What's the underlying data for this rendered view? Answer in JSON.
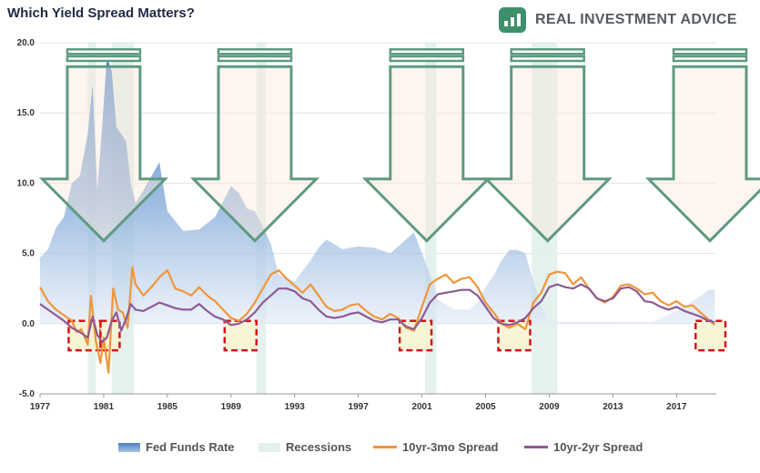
{
  "title": "Which Yield Spread Matters?",
  "brand": {
    "name": "REAL INVESTMENT ADVICE",
    "logo_icon": "rising-bars-logo-icon"
  },
  "chart_data": {
    "type": "area",
    "y_ticks": [
      "20.0",
      "15.0",
      "10.0",
      "5.0",
      "0.0",
      "-5.0"
    ],
    "x_ticks": [
      "1977",
      "1981",
      "1985",
      "1989",
      "1993",
      "1997",
      "2001",
      "2005",
      "2009",
      "2013",
      "2017"
    ],
    "xlim": [
      1977,
      2019.5
    ],
    "ylim": [
      -5,
      20
    ],
    "grid": true,
    "legend_placement": "bottom",
    "colors": {
      "fed_funds": "#7ea6d8",
      "recessions": "#e3f0ec",
      "spread_3mo": "#f0953a",
      "spread_2yr": "#8c5a94",
      "arrow_stroke": "#5f9a80",
      "arrow_fill": "#fbe9dc",
      "box_stroke": "#d4141a",
      "box_fill": "#f7f3cf"
    },
    "series": [
      {
        "name": "Fed Funds Rate",
        "x": [
          1977.0,
          1977.5,
          1978.0,
          1978.5,
          1979.0,
          1979.5,
          1980.0,
          1980.3,
          1980.6,
          1980.9,
          1981.2,
          1981.5,
          1981.8,
          1982.1,
          1982.4,
          1982.7,
          1983.0,
          1983.5,
          1984.0,
          1984.5,
          1985.0,
          1986.0,
          1987.0,
          1988.0,
          1989.0,
          1989.5,
          1990.0,
          1990.5,
          1991.0,
          1991.5,
          1992.0,
          1993.0,
          1994.0,
          1994.5,
          1995.0,
          1996.0,
          1997.0,
          1998.0,
          1999.0,
          2000.0,
          2000.5,
          2001.0,
          2001.5,
          2002.0,
          2003.0,
          2003.5,
          2004.0,
          2004.5,
          2005.0,
          2005.5,
          2006.0,
          2006.5,
          2007.0,
          2007.5,
          2008.0,
          2008.3,
          2008.6,
          2009.0,
          2012.0,
          2015.5,
          2016.0,
          2017.0,
          2017.5,
          2018.0,
          2018.5,
          2019.0,
          2019.4
        ],
        "values": [
          4.7,
          5.3,
          6.8,
          7.6,
          10.0,
          10.5,
          13.5,
          17.0,
          9.5,
          14.0,
          19.0,
          18.0,
          14.0,
          13.5,
          13.0,
          10.0,
          8.6,
          9.5,
          10.5,
          11.5,
          8.0,
          6.6,
          6.7,
          7.6,
          9.8,
          9.3,
          8.2,
          8.0,
          6.9,
          5.7,
          3.5,
          3.0,
          4.5,
          5.4,
          6.0,
          5.3,
          5.5,
          5.4,
          5.0,
          6.0,
          6.5,
          5.0,
          3.5,
          1.7,
          1.0,
          1.0,
          1.0,
          1.5,
          2.6,
          3.4,
          4.5,
          5.25,
          5.25,
          5.0,
          3.0,
          2.0,
          1.0,
          0.15,
          0.15,
          0.13,
          0.4,
          0.9,
          1.15,
          1.6,
          1.95,
          2.4,
          2.4
        ]
      },
      {
        "name": "Recessions",
        "periods": [
          [
            1980.0,
            1980.5
          ],
          [
            1981.5,
            1982.9
          ],
          [
            1990.6,
            1991.2
          ],
          [
            2001.2,
            2001.9
          ],
          [
            2007.9,
            2009.5
          ]
        ]
      },
      {
        "name": "10yr-3mo Spread",
        "x": [
          1977.0,
          1977.5,
          1978.0,
          1978.5,
          1979.0,
          1979.3,
          1979.6,
          1980.0,
          1980.2,
          1980.5,
          1980.8,
          1981.0,
          1981.3,
          1981.6,
          1981.9,
          1982.2,
          1982.5,
          1982.8,
          1983.0,
          1983.5,
          1984.0,
          1984.5,
          1985.0,
          1985.5,
          1986.0,
          1986.5,
          1987.0,
          1987.5,
          1988.0,
          1988.5,
          1989.0,
          1989.5,
          1990.0,
          1990.5,
          1991.0,
          1991.5,
          1992.0,
          1992.5,
          1993.0,
          1993.5,
          1994.0,
          1994.5,
          1995.0,
          1995.5,
          1996.0,
          1996.5,
          1997.0,
          1997.5,
          1998.0,
          1998.5,
          1999.0,
          1999.5,
          2000.0,
          2000.5,
          2001.0,
          2001.5,
          2002.0,
          2002.5,
          2003.0,
          2003.5,
          2004.0,
          2004.5,
          2005.0,
          2005.5,
          2006.0,
          2006.5,
          2007.0,
          2007.5,
          2008.0,
          2008.5,
          2009.0,
          2009.5,
          2010.0,
          2010.5,
          2011.0,
          2011.5,
          2012.0,
          2012.5,
          2013.0,
          2013.5,
          2014.0,
          2014.5,
          2015.0,
          2015.5,
          2016.0,
          2016.5,
          2017.0,
          2017.5,
          2018.0,
          2018.5,
          2019.0,
          2019.4
        ],
        "values": [
          2.6,
          1.6,
          1.0,
          0.6,
          0.2,
          -0.6,
          -0.4,
          -1.5,
          2.0,
          -1.2,
          -2.8,
          -1.0,
          -3.5,
          2.5,
          1.0,
          0.8,
          -0.3,
          4.0,
          2.8,
          2.0,
          2.6,
          3.3,
          3.8,
          2.5,
          2.3,
          2.0,
          2.6,
          2.0,
          1.6,
          1.0,
          0.4,
          0.2,
          0.7,
          1.5,
          2.5,
          3.5,
          3.8,
          3.2,
          2.7,
          2.2,
          2.8,
          2.0,
          1.2,
          0.9,
          1.0,
          1.3,
          1.4,
          0.9,
          0.5,
          0.3,
          0.7,
          0.4,
          -0.3,
          -0.5,
          1.2,
          2.8,
          3.2,
          3.5,
          2.9,
          3.2,
          3.3,
          2.6,
          1.5,
          0.8,
          0.0,
          -0.3,
          0.0,
          -0.4,
          1.5,
          2.2,
          3.5,
          3.7,
          3.6,
          2.8,
          3.3,
          2.5,
          1.8,
          1.5,
          1.9,
          2.7,
          2.8,
          2.5,
          2.1,
          2.2,
          1.6,
          1.3,
          1.6,
          1.2,
          1.3,
          0.8,
          0.3,
          -0.1
        ]
      },
      {
        "name": "10yr-2yr Spread",
        "x": [
          1977.0,
          1977.5,
          1978.0,
          1978.5,
          1979.0,
          1979.5,
          1980.0,
          1980.3,
          1980.6,
          1980.9,
          1981.2,
          1981.5,
          1981.8,
          1982.1,
          1982.4,
          1982.7,
          1983.0,
          1983.5,
          1984.0,
          1984.5,
          1985.0,
          1985.5,
          1986.0,
          1986.5,
          1987.0,
          1987.5,
          1988.0,
          1988.5,
          1989.0,
          1989.5,
          1990.0,
          1990.5,
          1991.0,
          1991.5,
          1992.0,
          1992.5,
          1993.0,
          1993.5,
          1994.0,
          1994.5,
          1995.0,
          1995.5,
          1996.0,
          1996.5,
          1997.0,
          1997.5,
          1998.0,
          1998.5,
          1999.0,
          1999.5,
          2000.0,
          2000.5,
          2001.0,
          2001.5,
          2002.0,
          2002.5,
          2003.0,
          2003.5,
          2004.0,
          2004.5,
          2005.0,
          2005.5,
          2006.0,
          2006.5,
          2007.0,
          2007.5,
          2008.0,
          2008.5,
          2009.0,
          2009.5,
          2010.0,
          2010.5,
          2011.0,
          2011.5,
          2012.0,
          2012.5,
          2013.0,
          2013.5,
          2014.0,
          2014.5,
          2015.0,
          2015.5,
          2016.0,
          2016.5,
          2017.0,
          2017.5,
          2018.0,
          2018.5,
          2019.0,
          2019.4
        ],
        "values": [
          1.4,
          1.0,
          0.6,
          0.2,
          -0.3,
          -0.6,
          -1.0,
          0.5,
          -0.8,
          -1.3,
          -1.0,
          0.2,
          0.8,
          -0.5,
          0.3,
          1.4,
          1.0,
          0.9,
          1.2,
          1.5,
          1.3,
          1.1,
          1.0,
          1.0,
          1.4,
          0.9,
          0.5,
          0.3,
          -0.1,
          0.0,
          0.3,
          0.8,
          1.5,
          2.0,
          2.5,
          2.5,
          2.3,
          1.8,
          1.6,
          1.0,
          0.5,
          0.4,
          0.5,
          0.7,
          0.8,
          0.5,
          0.2,
          0.1,
          0.3,
          0.3,
          -0.2,
          -0.4,
          0.4,
          1.5,
          2.1,
          2.2,
          2.3,
          2.4,
          2.4,
          2.0,
          1.2,
          0.4,
          0.0,
          -0.1,
          0.1,
          0.4,
          1.1,
          1.6,
          2.6,
          2.8,
          2.6,
          2.5,
          2.8,
          2.5,
          1.8,
          1.6,
          1.8,
          2.5,
          2.6,
          2.3,
          1.6,
          1.5,
          1.2,
          1.0,
          1.2,
          0.9,
          0.7,
          0.5,
          0.2,
          0.1
        ]
      }
    ],
    "annotations": {
      "arrows_at": [
        1981.0,
        1990.5,
        2001.3,
        2008.9,
        2019.1
      ],
      "inversion_boxes": [
        [
          1978.8,
          1980.8
        ],
        [
          1980.8,
          1982.0
        ],
        [
          1988.6,
          1990.6
        ],
        [
          1999.6,
          2001.6
        ],
        [
          2005.8,
          2007.8
        ],
        [
          2018.2,
          2020.2
        ]
      ]
    }
  },
  "legend": [
    {
      "label": "Fed Funds Rate",
      "kind": "area"
    },
    {
      "label": "Recessions",
      "kind": "area"
    },
    {
      "label": "10yr-3mo Spread",
      "kind": "line"
    },
    {
      "label": "10yr-2yr Spread",
      "kind": "line"
    }
  ]
}
